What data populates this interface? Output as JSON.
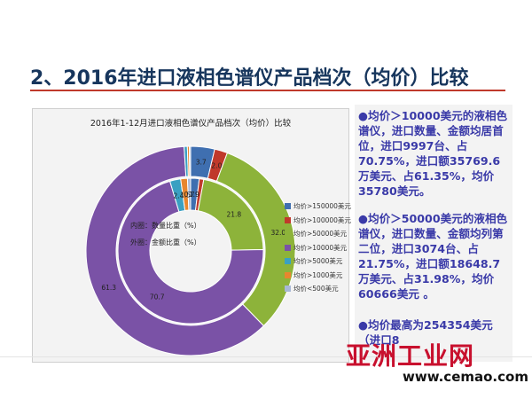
{
  "slide": {
    "title": "2、2016年进口液相色谱仪产品档次（均价）比较"
  },
  "bullets": [
    "●均价＞10000美元的液相色谱仪，进口数量、金额均居首位，进口9997台、占70.75%，进口额35769.6万美元、占61.35%，均价35780美元。",
    "●均价＞50000美元的液相色谱仪，进口数量、金额均列第二位，进口3074台、占21.75%，进口额18648.7万美元、占31.98%，均价60666美元 。",
    "●均价最高为254354美元（进口8"
  ],
  "watermark": {
    "cn": "亚洲工业网",
    "url": "www.cemao.com"
  },
  "chart_data": {
    "type": "pie",
    "title": "2016年1-12月进口液相色谱仪产品档次（均价）比较",
    "inner_note": "内圈：数量比重（%）",
    "outer_note": "外圈：金额比重（%）",
    "categories": [
      "均价>150000美元",
      "均价>100000美元",
      "均价>50000美元",
      "均价>10000美元",
      "均价>5000美元",
      "均价>1000美元",
      "均价<500美元"
    ],
    "colors": [
      "#3f6fb0",
      "#c0392b",
      "#8db33a",
      "#7a52a6",
      "#3aa0c2",
      "#e8862e",
      "#a9b8d6"
    ],
    "series": [
      {
        "name": "内圈",
        "values": [
          1.9,
          1.0,
          21.8,
          70.7,
          2.4,
          1.5,
          0.7
        ]
      },
      {
        "name": "外圈",
        "values": [
          3.7,
          2.0,
          32.0,
          61.3,
          0.5,
          0.3,
          0.2
        ]
      }
    ],
    "data_labels": [
      {
        "series": 0,
        "index": 0,
        "text": "1.9"
      },
      {
        "series": 0,
        "index": 2,
        "text": "21.8"
      },
      {
        "series": 0,
        "index": 3,
        "text": "70.7"
      },
      {
        "series": 0,
        "index": 4,
        "text": "2.4"
      },
      {
        "series": 0,
        "index": 5,
        "text": "1.5"
      },
      {
        "series": 0,
        "index": 6,
        "text": "0.7"
      },
      {
        "series": 1,
        "index": 0,
        "text": "3.7"
      },
      {
        "series": 1,
        "index": 1,
        "text": "2.0"
      },
      {
        "series": 1,
        "index": 2,
        "text": "32.0"
      },
      {
        "series": 1,
        "index": 3,
        "text": "61.3"
      }
    ],
    "legend_position": "right"
  }
}
